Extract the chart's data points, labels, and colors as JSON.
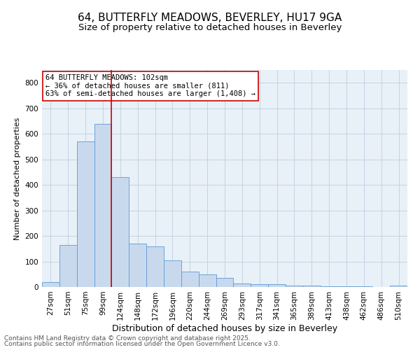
{
  "title1": "64, BUTTERFLY MEADOWS, BEVERLEY, HU17 9GA",
  "title2": "Size of property relative to detached houses in Beverley",
  "xlabel": "Distribution of detached houses by size in Beverley",
  "ylabel": "Number of detached properties",
  "categories": [
    "27sqm",
    "51sqm",
    "75sqm",
    "99sqm",
    "124sqm",
    "148sqm",
    "172sqm",
    "196sqm",
    "220sqm",
    "244sqm",
    "269sqm",
    "293sqm",
    "317sqm",
    "341sqm",
    "365sqm",
    "389sqm",
    "413sqm",
    "438sqm",
    "462sqm",
    "486sqm",
    "510sqm"
  ],
  "values": [
    20,
    165,
    570,
    640,
    430,
    170,
    160,
    105,
    60,
    50,
    35,
    15,
    10,
    10,
    5,
    5,
    4,
    3,
    2,
    1,
    5
  ],
  "bar_color": "#c9d9ed",
  "bar_edge_color": "#5b9bd5",
  "vline_x_index": 3.5,
  "vline_color": "#cc0000",
  "annotation_text": "64 BUTTERFLY MEADOWS: 102sqm\n← 36% of detached houses are smaller (811)\n63% of semi-detached houses are larger (1,408) →",
  "annotation_box_color": "#ffffff",
  "annotation_box_edge": "#cc0000",
  "ylim": [
    0,
    850
  ],
  "yticks": [
    0,
    100,
    200,
    300,
    400,
    500,
    600,
    700,
    800
  ],
  "grid_color": "#c0cfe0",
  "bg_color": "#e8f0f8",
  "footer1": "Contains HM Land Registry data © Crown copyright and database right 2025.",
  "footer2": "Contains public sector information licensed under the Open Government Licence v3.0.",
  "title1_fontsize": 11,
  "title2_fontsize": 9.5,
  "xlabel_fontsize": 9,
  "ylabel_fontsize": 8,
  "tick_fontsize": 7.5,
  "annotation_fontsize": 7.5,
  "footer_fontsize": 6.5
}
